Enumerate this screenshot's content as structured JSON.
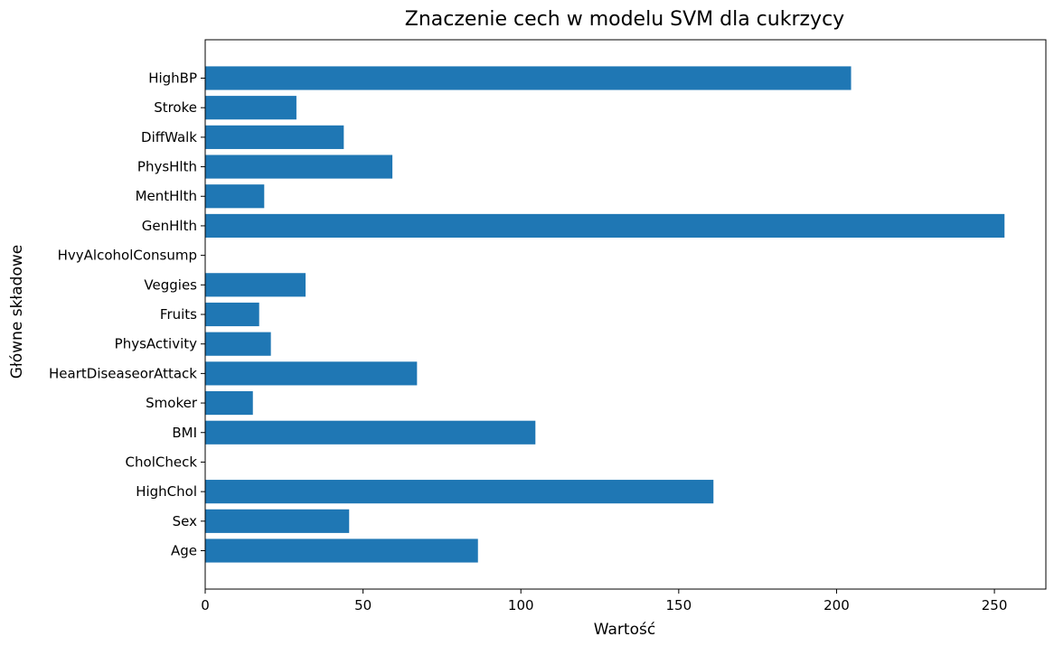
{
  "chart_data": {
    "type": "bar",
    "orientation": "horizontal",
    "title": "Znaczenie cech w modelu SVM dla cukrzycy",
    "xlabel": "Wartość",
    "ylabel": "Główne składowe",
    "categories": [
      "Age",
      "Sex",
      "HighChol",
      "CholCheck",
      "BMI",
      "Smoker",
      "HeartDiseaseorAttack",
      "PhysActivity",
      "Fruits",
      "Veggies",
      "HvyAlcoholConsump",
      "GenHlth",
      "MentHlth",
      "PhysHlth",
      "DiffWalk",
      "Stroke",
      "HighBP"
    ],
    "values": [
      86.4,
      45.6,
      161.0,
      0,
      104.6,
      15.1,
      67.1,
      20.8,
      17.1,
      31.8,
      0,
      253.2,
      18.7,
      59.3,
      43.9,
      28.9,
      204.6
    ],
    "xlim": [
      0,
      266.3
    ],
    "xticks": [
      "0",
      "50",
      "100",
      "150",
      "200",
      "250"
    ],
    "bar_color": "#1f77b4",
    "grid": false,
    "legend": "none"
  }
}
